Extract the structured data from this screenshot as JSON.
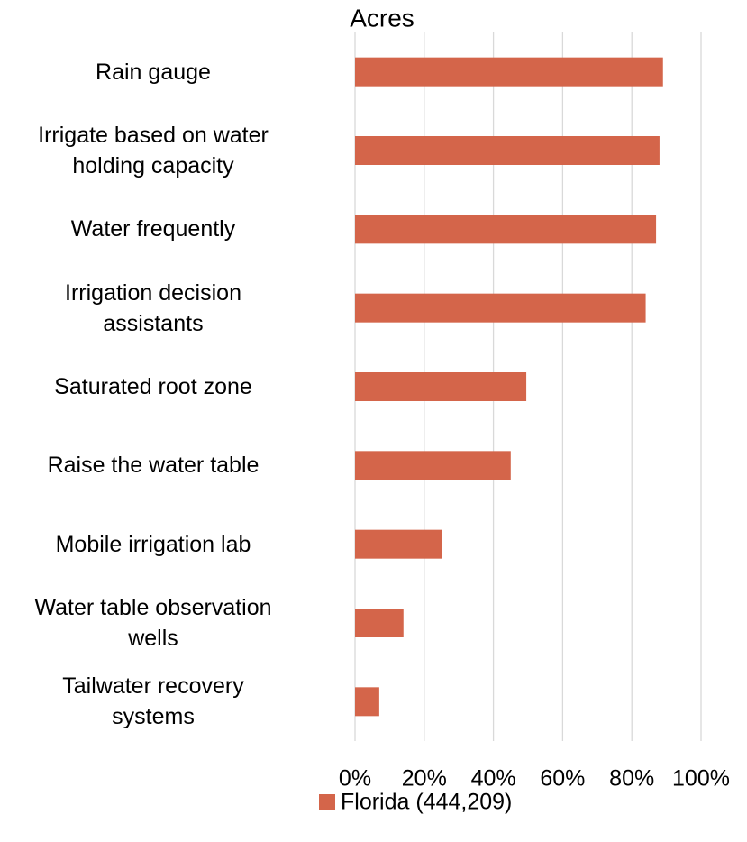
{
  "chart_data": {
    "type": "barh",
    "title": "Acres",
    "categories": [
      "Rain gauge",
      "Irrigate based on water\nholding capacity",
      "Water frequently",
      "Irrigation decision\nassistants",
      "Saturated root zone",
      "Raise the water table",
      "Mobile irrigation lab",
      "Water table observation\nwells",
      "Tailwater recovery\nsystems"
    ],
    "series": [
      {
        "name": "Florida (444,209)",
        "color": "#d4654a",
        "values": [
          89,
          88,
          87,
          84,
          49.5,
          45,
          25,
          14,
          7
        ]
      }
    ],
    "xlim": [
      0,
      100
    ],
    "xticks": [
      {
        "value": 0,
        "label": "0%"
      },
      {
        "value": 20,
        "label": "20%"
      },
      {
        "value": 40,
        "label": "40%"
      },
      {
        "value": 60,
        "label": "60%"
      },
      {
        "value": 80,
        "label": "80%"
      },
      {
        "value": 100,
        "label": "100%"
      }
    ],
    "grid": true,
    "legend": "bottom"
  }
}
